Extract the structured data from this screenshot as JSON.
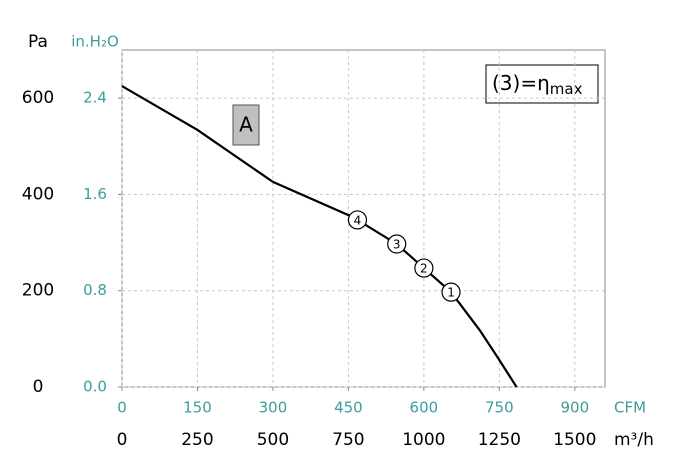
{
  "chart_data": {
    "type": "line",
    "y_unit": "Pa",
    "y2_unit": "in.H₂O",
    "x_unit": "m³/h",
    "x2_unit": "CFM",
    "x": [
      0,
      250,
      500,
      750,
      780,
      910,
      1000,
      1090,
      1185,
      1250,
      1307
    ],
    "values": [
      625,
      534,
      426,
      357,
      347,
      297,
      247,
      197,
      118,
      56,
      0
    ],
    "color": "#000000",
    "xlim": [
      0,
      1600
    ],
    "xticks": [
      0,
      250,
      500,
      750,
      1000,
      1250,
      1500
    ],
    "x2lim": [
      0,
      960
    ],
    "x2ticks": [
      0,
      150,
      300,
      450,
      600,
      750,
      900
    ],
    "ylim": [
      0,
      700
    ],
    "yticks": [
      0,
      200,
      400,
      600
    ],
    "y2lim": [
      0,
      2.8
    ],
    "y2ticks": [
      {
        "value": 0,
        "label": "0.0"
      },
      0.8,
      1.6,
      2.4
    ],
    "grid": true,
    "operating_points": [
      {
        "label": "1",
        "x": 1090,
        "y": 197
      },
      {
        "label": "2",
        "x": 1000,
        "y": 247
      },
      {
        "label": "3",
        "x": 910,
        "y": 297
      },
      {
        "label": "4",
        "x": 780,
        "y": 347
      }
    ],
    "curve_label": "A",
    "annotation": {
      "text": "(3)=η",
      "sub": "max"
    }
  }
}
